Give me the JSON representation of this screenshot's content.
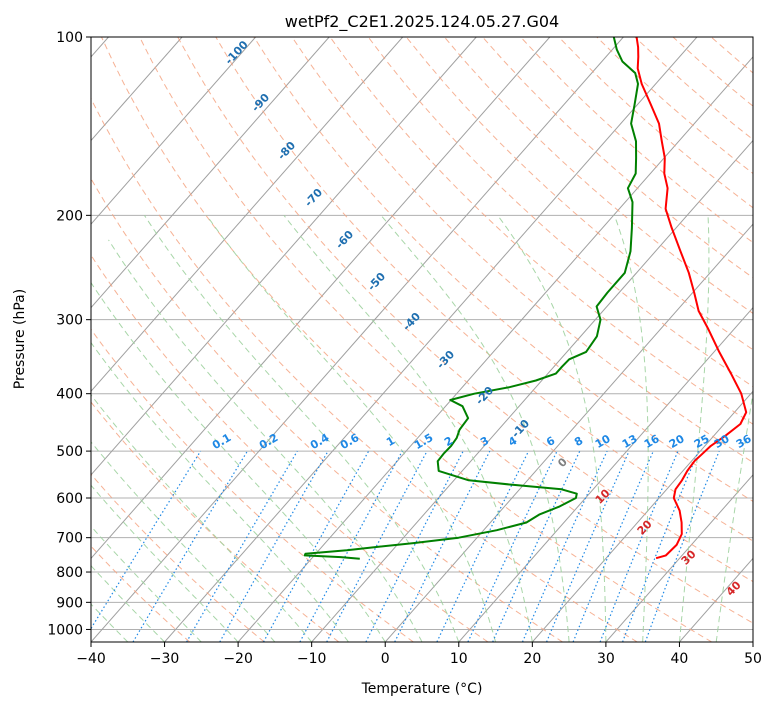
{
  "chart_data": {
    "type": "skew-t",
    "title": "wetPf2_C2E1.2025.124.05.27.G04",
    "xlabel": "Temperature (°C)",
    "ylabel": "Pressure (hPa)",
    "xlim": [
      -40,
      50
    ],
    "ylim": [
      1050,
      100
    ],
    "y_scale": "log",
    "grid": true,
    "x_ticks": [
      "−40",
      "−30",
      "−20",
      "−10",
      "0",
      "10",
      "20",
      "30",
      "40",
      "50"
    ],
    "y_ticks": [
      {
        "p": 100,
        "label": "100"
      },
      {
        "p": 200,
        "label": "200"
      },
      {
        "p": 300,
        "label": "300"
      },
      {
        "p": 400,
        "label": "400"
      },
      {
        "p": 500,
        "label": "500"
      },
      {
        "p": 600,
        "label": "600"
      },
      {
        "p": 700,
        "label": "700"
      },
      {
        "p": 800,
        "label": "800"
      },
      {
        "p": 900,
        "label": "900"
      },
      {
        "p": 1000,
        "label": "1000"
      }
    ],
    "series": [
      {
        "color": "#ff0000",
        "points": [
          [
            758,
            26.8
          ],
          [
            750,
            27.8
          ],
          [
            720,
            28.0
          ],
          [
            690,
            27.4
          ],
          [
            660,
            26.0
          ],
          [
            630,
            24.3
          ],
          [
            600,
            22.0
          ],
          [
            580,
            21.2
          ],
          [
            560,
            21.0
          ],
          [
            540,
            20.6
          ],
          [
            520,
            20.4
          ],
          [
            505,
            20.6
          ],
          [
            490,
            20.8
          ],
          [
            470,
            21.6
          ],
          [
            450,
            22.2
          ],
          [
            430,
            21.6
          ],
          [
            400,
            18.7
          ],
          [
            370,
            14.9
          ],
          [
            340,
            10.7
          ],
          [
            310,
            6.3
          ],
          [
            290,
            3.0
          ],
          [
            270,
            0.2
          ],
          [
            250,
            -2.9
          ],
          [
            230,
            -6.6
          ],
          [
            210,
            -10.6
          ],
          [
            195,
            -13.7
          ],
          [
            180,
            -15.9
          ],
          [
            170,
            -18.1
          ],
          [
            160,
            -19.9
          ],
          [
            150,
            -22.3
          ],
          [
            140,
            -24.8
          ],
          [
            130,
            -28.2
          ],
          [
            120,
            -31.9
          ],
          [
            113,
            -34.3
          ],
          [
            108,
            -35.6
          ],
          [
            104,
            -36.8
          ],
          [
            100,
            -38.2
          ]
        ]
      },
      {
        "color": "#008000",
        "points": [
          [
            760,
            -13.4
          ],
          [
            755,
            -16.2
          ],
          [
            750,
            -21.3
          ],
          [
            745,
            -21.4
          ],
          [
            735,
            -16.2
          ],
          [
            725,
            -12.3
          ],
          [
            715,
            -8.0
          ],
          [
            700,
            -2.5
          ],
          [
            680,
            1.8
          ],
          [
            660,
            4.9
          ],
          [
            640,
            5.7
          ],
          [
            620,
            7.5
          ],
          [
            600,
            8.7
          ],
          [
            590,
            8.3
          ],
          [
            580,
            5.7
          ],
          [
            570,
            -1.5
          ],
          [
            560,
            -8.0
          ],
          [
            540,
            -13.2
          ],
          [
            520,
            -14.5
          ],
          [
            505,
            -14.6
          ],
          [
            490,
            -14.5
          ],
          [
            475,
            -14.7
          ],
          [
            460,
            -15.3
          ],
          [
            440,
            -15.5
          ],
          [
            420,
            -17.7
          ],
          [
            410,
            -20.1
          ],
          [
            400,
            -17.6
          ],
          [
            390,
            -13.6
          ],
          [
            380,
            -10.8
          ],
          [
            370,
            -8.9
          ],
          [
            360,
            -8.9
          ],
          [
            350,
            -8.8
          ],
          [
            340,
            -7.4
          ],
          [
            320,
            -7.8
          ],
          [
            300,
            -9.3
          ],
          [
            285,
            -11.4
          ],
          [
            270,
            -11.6
          ],
          [
            250,
            -11.6
          ],
          [
            230,
            -13.4
          ],
          [
            210,
            -16.0
          ],
          [
            190,
            -19.0
          ],
          [
            180,
            -21.3
          ],
          [
            170,
            -22.0
          ],
          [
            160,
            -23.8
          ],
          [
            150,
            -25.8
          ],
          [
            140,
            -28.6
          ],
          [
            130,
            -30.4
          ],
          [
            120,
            -32.4
          ],
          [
            115,
            -34.1
          ],
          [
            110,
            -37.2
          ],
          [
            105,
            -39.4
          ],
          [
            100,
            -41.3
          ]
        ]
      }
    ],
    "background_lines": {
      "isotherms": "gray solid, every 10 °C",
      "dry_adiabats": "light red dashed",
      "moist_adiabats": "light green dashed",
      "mixing_ratio": "blue dotted"
    },
    "dry_adiabat_labels": [
      "-100",
      "-90",
      "-80",
      "-70",
      "-60",
      "-50",
      "-40",
      "-30",
      "-20",
      "-10"
    ],
    "moist_adiabat_labels": [
      "0",
      "10",
      "20",
      "30",
      "40"
    ],
    "mixing_ratio_labels": [
      "0.1",
      "0.2",
      "0.4",
      "0.6",
      "1",
      "1.5",
      "2",
      "3",
      "4",
      "6",
      "8",
      "10",
      "13",
      "16",
      "20",
      "25",
      "30",
      "36"
    ],
    "colors": {
      "temperature": "#ff0000",
      "dewpoint": "#008000",
      "isotherm": "#a0a0a0",
      "dry_adiabat": "#f5a582",
      "moist_adiabat": "#9fd19f",
      "mixing_ratio": "#1e88e5",
      "dry_label": "#1f6fb0",
      "moist_label": "#d62728"
    }
  }
}
